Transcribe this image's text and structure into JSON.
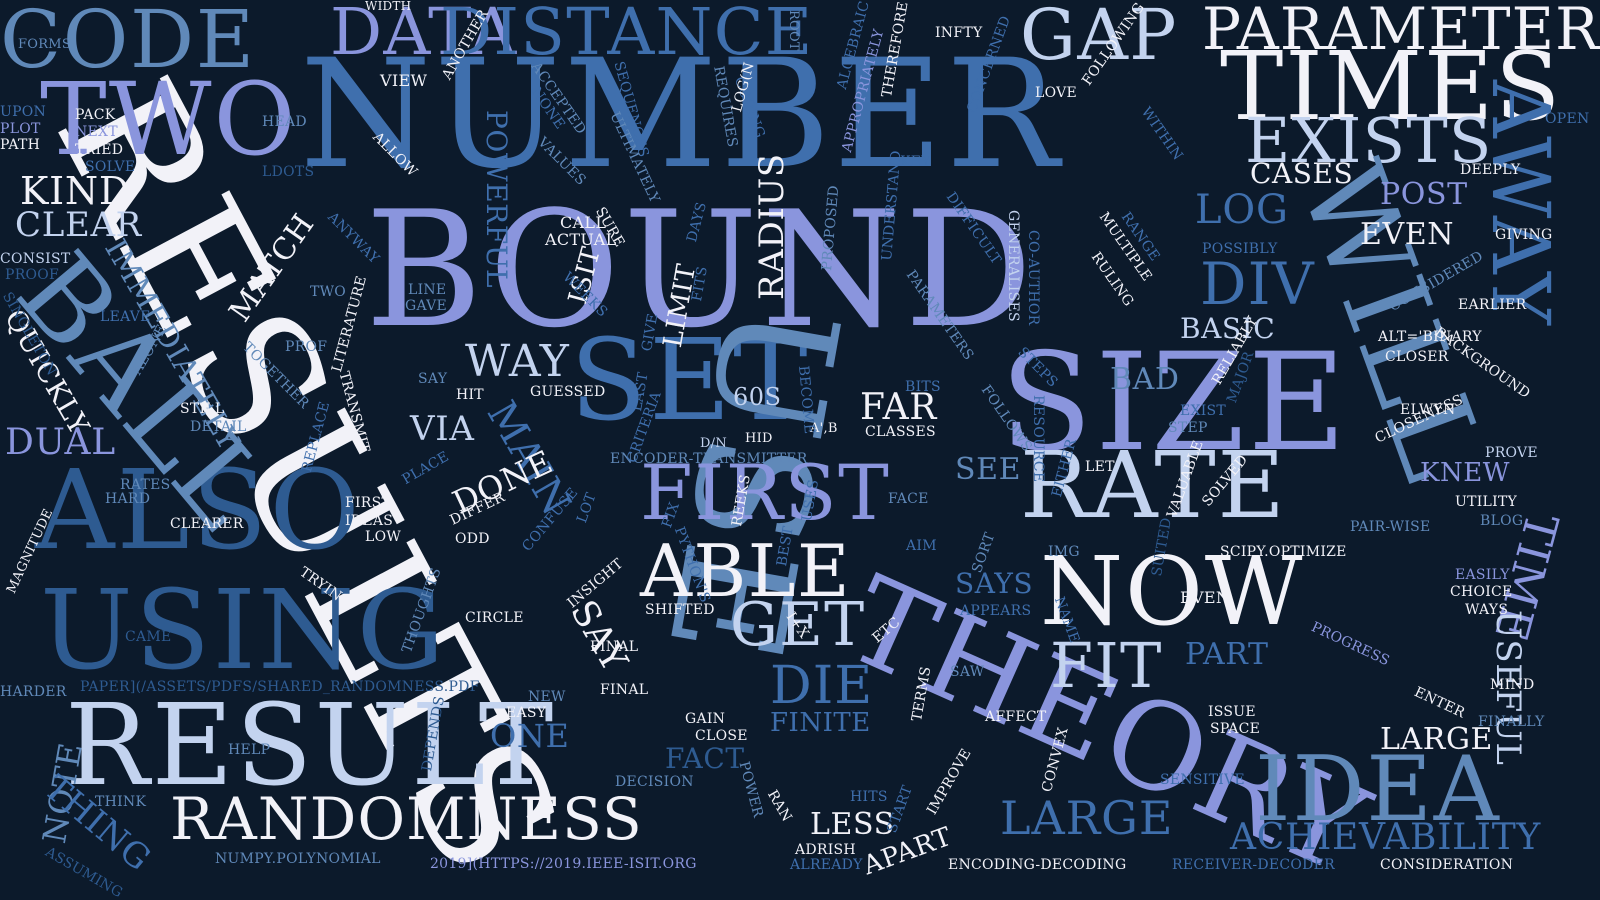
{
  "word_cloud": {
    "background_color": "#0c1a2b",
    "palette": [
      "#f2f2f8",
      "#c3d3ef",
      "#8a95dd",
      "#3f6fad",
      "#6089b9",
      "#2e5b91"
    ],
    "words": [
      {
        "text": "NUMBER"
      },
      {
        "text": "BOUND"
      },
      {
        "text": "RESULTS"
      },
      {
        "text": "SIZE"
      },
      {
        "text": "SET"
      },
      {
        "text": "USE"
      },
      {
        "text": "THEORY"
      },
      {
        "text": "RESULT"
      },
      {
        "text": "USING"
      },
      {
        "text": "ALSO"
      },
      {
        "text": "BALL"
      },
      {
        "text": "CODE"
      },
      {
        "text": "TWO"
      },
      {
        "text": "DATA"
      },
      {
        "text": "DISTANCE"
      },
      {
        "text": "GAP"
      },
      {
        "text": "TIMES"
      },
      {
        "text": "PARAMETER"
      },
      {
        "text": "EXISTS"
      },
      {
        "text": "RATE"
      },
      {
        "text": "NOW"
      },
      {
        "text": "IDEA"
      },
      {
        "text": "WILL"
      },
      {
        "text": "AWAY"
      },
      {
        "text": "FIRST"
      },
      {
        "text": "ABLE"
      },
      {
        "text": "RANDOMNESS"
      },
      {
        "text": "FIT"
      },
      {
        "text": "GET"
      },
      {
        "text": "DIE"
      },
      {
        "text": "DIV"
      },
      {
        "text": "LOG"
      },
      {
        "text": "TIME"
      },
      {
        "text": "USEFUL"
      },
      {
        "text": "LARGE"
      },
      {
        "text": "ACHIEVABILITY"
      },
      {
        "text": "KIND"
      },
      {
        "text": "CLEAR"
      },
      {
        "text": "DUAL"
      },
      {
        "text": "NOTE"
      },
      {
        "text": "THING"
      },
      {
        "text": "QUICKLY"
      },
      {
        "text": "IMMEDIATELY"
      },
      {
        "text": "MATCH"
      },
      {
        "text": "POWERFUL"
      },
      {
        "text": "MAIN"
      },
      {
        "text": "WAY"
      },
      {
        "text": "VIA"
      },
      {
        "text": "DONE"
      },
      {
        "text": "SAY"
      },
      {
        "text": "LIMIT"
      },
      {
        "text": "RADIUS"
      },
      {
        "text": "FAR"
      },
      {
        "text": "EVEN"
      },
      {
        "text": "BASIC"
      },
      {
        "text": "CASES"
      },
      {
        "text": "POST"
      },
      {
        "text": "FINITE"
      },
      {
        "text": "FACT"
      },
      {
        "text": "LESS"
      },
      {
        "text": "APART"
      },
      {
        "text": "ONE"
      },
      {
        "text": "PART"
      },
      {
        "text": "LARGE"
      },
      {
        "text": "SEE"
      },
      {
        "text": "BAD"
      },
      {
        "text": "SAYS"
      },
      {
        "text": "KNEW"
      },
      {
        "text": "ISIT"
      },
      {
        "text": "60S"
      },
      {
        "text": "CALL"
      },
      {
        "text": "ACTUAL"
      },
      {
        "text": "WIDTH"
      },
      {
        "text": "INFTY"
      },
      {
        "text": "FORMS"
      },
      {
        "text": "UPON"
      },
      {
        "text": "PLOT"
      },
      {
        "text": "PATH"
      },
      {
        "text": "PACK"
      },
      {
        "text": "NEXT"
      },
      {
        "text": "TRIED"
      },
      {
        "text": "SOLVE"
      },
      {
        "text": "HEAD"
      },
      {
        "text": "LDOTS"
      },
      {
        "text": "VIEW"
      },
      {
        "text": "ROOT"
      },
      {
        "text": "LOVE"
      },
      {
        "text": "OPEN"
      },
      {
        "text": "CONSIST"
      },
      {
        "text": "PROOF"
      },
      {
        "text": "SINGLETON"
      },
      {
        "text": "LEAVE"
      },
      {
        "text": "ALONE"
      },
      {
        "text": "PROF"
      },
      {
        "text": "TWO"
      },
      {
        "text": "STILL"
      },
      {
        "text": "DETAIL"
      },
      {
        "text": "LINE"
      },
      {
        "text": "GAVE"
      },
      {
        "text": "HIT"
      },
      {
        "text": "GUESSED"
      },
      {
        "text": "D/N"
      },
      {
        "text": "A',B"
      },
      {
        "text": "HID"
      },
      {
        "text": "ENCODER-TRANSMITTER"
      },
      {
        "text": "CLASSES"
      },
      {
        "text": "RATES"
      },
      {
        "text": "HARD"
      },
      {
        "text": "CLEARER"
      },
      {
        "text": "MAGNITUDE"
      },
      {
        "text": "FIRST",
        "keep_case": true
      },
      {
        "text": "IDEAS",
        "keep_case": true
      },
      {
        "text": "LOW"
      },
      {
        "text": "ODD"
      },
      {
        "text": "DIFFER"
      },
      {
        "text": "CAME"
      },
      {
        "text": "CIRCLE"
      },
      {
        "text": "TRYING"
      },
      {
        "text": "THOUGHTS"
      },
      {
        "text": "INSIGHT"
      },
      {
        "text": "SHIFTED"
      },
      {
        "text": "FINAL",
        "keep_case": true
      },
      {
        "text": "FINAL"
      },
      {
        "text": "NEW"
      },
      {
        "text": "EASY"
      },
      {
        "text": "GAIN"
      },
      {
        "text": "CLOSE"
      },
      {
        "text": "DECISION"
      },
      {
        "text": "RAN"
      },
      {
        "text": "ADRISH"
      },
      {
        "text": "HARDER"
      },
      {
        "text": "PAPER](/ASSETS/PDFS/SHARED_RANDOMNESS.PDF"
      },
      {
        "text": "HELP"
      },
      {
        "text": "THINK"
      },
      {
        "text": "ASSUMING"
      },
      {
        "text": "NUMPY.POLYNOMIAL"
      },
      {
        "text": "2019](HTTPS://2019.IEEE-ISIT.ORG"
      },
      {
        "text": "ALREADY"
      },
      {
        "text": "ENCODING-DECODING"
      },
      {
        "text": "RECEIVER-DECODER"
      },
      {
        "text": "CONSIDERATION"
      },
      {
        "text": "SCIPY.OPTIMIZE"
      },
      {
        "text": "EVEN",
        "keep_case": true
      },
      {
        "text": "ISSUE"
      },
      {
        "text": "SPACE"
      },
      {
        "text": "AFFECT"
      },
      {
        "text": "SAW"
      },
      {
        "text": "APPEARS"
      },
      {
        "text": "AIM"
      },
      {
        "text": "FACE"
      },
      {
        "text": "IMG"
      },
      {
        "text": "SENSITIVE"
      },
      {
        "text": "HITS"
      },
      {
        "text": "I+X"
      },
      {
        "text": "EARLIER"
      },
      {
        "text": "GIVING"
      },
      {
        "text": "DEEPLY"
      },
      {
        "text": "CLOSER"
      },
      {
        "text": "ALT='BINARY"
      },
      {
        "text": "POSSIBLY"
      },
      {
        "text": "UTILITY"
      },
      {
        "text": "BLOG"
      },
      {
        "text": "PAIR-WISE"
      },
      {
        "text": "PROVE"
      },
      {
        "text": "EASILY"
      },
      {
        "text": "CHOICE"
      },
      {
        "text": "WAYS"
      },
      {
        "text": "MIND"
      },
      {
        "text": "FINALLY"
      },
      {
        "text": "ENTER"
      },
      {
        "text": "PROGRESS"
      },
      {
        "text": "CLOSENESS"
      },
      {
        "text": "ELWYN"
      },
      {
        "text": "BACKGROUND"
      },
      {
        "text": "CONSIDERED"
      },
      {
        "text": "EXIST"
      },
      {
        "text": "STEP"
      },
      {
        "text": "LET"
      },
      {
        "text": "KEY"
      },
      {
        "text": "ACCEPTED"
      },
      {
        "text": "NONE"
      },
      {
        "text": "VALUES"
      },
      {
        "text": "ANOTHER"
      },
      {
        "text": "ALLOW"
      },
      {
        "text": "SEQUENCES"
      },
      {
        "text": "REQUIRES"
      },
      {
        "text": "CODING"
      },
      {
        "text": "THEREFORE"
      },
      {
        "text": "ALGEBRAIC"
      },
      {
        "text": "FOLLOWING"
      },
      {
        "text": "WITHIN"
      },
      {
        "text": "PROPOSED"
      },
      {
        "text": "UNDERSTAND"
      },
      {
        "text": "GENERALISES"
      },
      {
        "text": "MULTIPLE"
      },
      {
        "text": "RULING"
      },
      {
        "text": "RANGE"
      },
      {
        "text": "CO-AUTHOR"
      },
      {
        "text": "PARAMETERS"
      },
      {
        "text": "DIFFICULT"
      },
      {
        "text": "CONCERNED"
      },
      {
        "text": "RESOURCE"
      },
      {
        "text": "FOLLOWS"
      },
      {
        "text": "STEPS"
      },
      {
        "text": "BITS"
      },
      {
        "text": "RELIABLY"
      },
      {
        "text": "MAJOR"
      },
      {
        "text": "SOLVED"
      },
      {
        "text": "VALUABLE"
      },
      {
        "text": "SUITED"
      },
      {
        "text": "NAME"
      },
      {
        "text": "SORT"
      },
      {
        "text": "CONVEX"
      },
      {
        "text": "IMPROVE"
      },
      {
        "text": "START"
      },
      {
        "text": "TERMS"
      },
      {
        "text": "BEST"
      },
      {
        "text": "USES"
      },
      {
        "text": "BECOME"
      },
      {
        "text": "REEKS"
      },
      {
        "text": "PYTHON'S"
      },
      {
        "text": "FIX"
      },
      {
        "text": "CRITERIA"
      },
      {
        "text": "LAST"
      },
      {
        "text": "GIVE"
      },
      {
        "text": "FITS"
      },
      {
        "text": "DAYS"
      },
      {
        "text": "SURE"
      },
      {
        "text": "WEEKS"
      },
      {
        "text": "LOG(N"
      },
      {
        "text": "ULTIMATELY"
      },
      {
        "text": "APPROPRIATELY"
      },
      {
        "text": "ANYWAY"
      },
      {
        "text": "LITERATURE"
      },
      {
        "text": "TRANSMIT"
      },
      {
        "text": "REPLACE"
      },
      {
        "text": "PLACE"
      },
      {
        "text": "CONFUSE"
      },
      {
        "text": "LOT"
      },
      {
        "text": "DEPENDS"
      },
      {
        "text": "POWER"
      },
      {
        "text": "TOGETHER"
      },
      {
        "text": "SAY"
      },
      {
        "text": "ETC"
      },
      {
        "text": "EITHER"
      }
    ]
  }
}
